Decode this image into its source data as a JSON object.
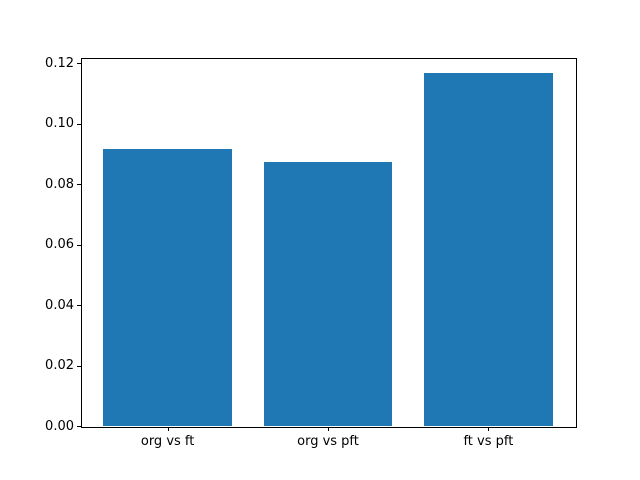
{
  "figure": {
    "background_color": "#ffffff",
    "bar_color": "#1f77b4",
    "axis_color": "#000000",
    "text_color": "#000000"
  },
  "chart_data": {
    "type": "bar",
    "categories": [
      "org vs ft",
      "org vs pft",
      "ft vs pft"
    ],
    "values": [
      0.0917,
      0.0873,
      0.1167
    ],
    "title": "",
    "xlabel": "",
    "ylabel": "",
    "ylim": [
      0,
      0.1218
    ],
    "xlim": [
      -0.54,
      2.54
    ],
    "yticks": [
      0.0,
      0.02,
      0.04,
      0.06,
      0.08,
      0.1,
      0.12
    ],
    "ytick_labels": [
      "0.00",
      "0.02",
      "0.04",
      "0.06",
      "0.08",
      "0.10",
      "0.12"
    ],
    "bar_width_units": 0.8,
    "grid": false,
    "legend": null
  }
}
